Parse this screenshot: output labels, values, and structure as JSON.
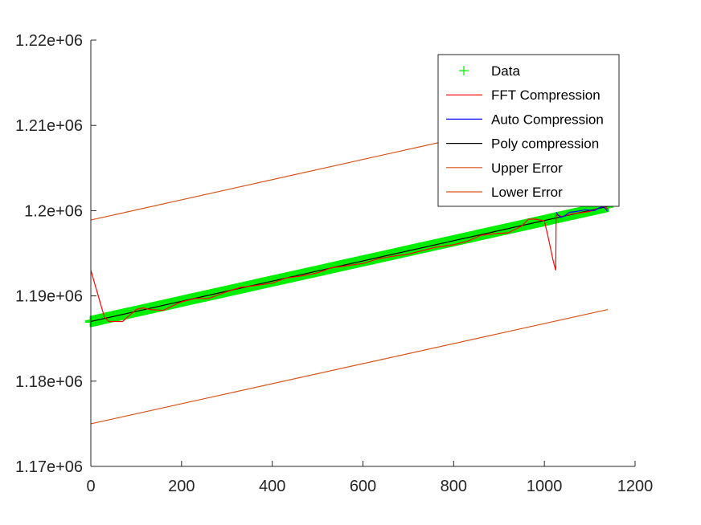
{
  "chart_data": {
    "type": "line",
    "title": "",
    "xlabel": "",
    "ylabel": "",
    "xlim": [
      0,
      1200
    ],
    "ylim": [
      1170000,
      1220000
    ],
    "x_ticks": [
      0,
      200,
      400,
      600,
      800,
      1000,
      1200
    ],
    "x_tick_labels": [
      "0",
      "200",
      "400",
      "600",
      "800",
      "1000",
      "1200"
    ],
    "y_ticks": [
      1170000,
      1180000,
      1190000,
      1200000,
      1210000,
      1220000
    ],
    "y_tick_labels": [
      "1.17e+06",
      "1.18e+06",
      "1.19e+06",
      "1.2e+06",
      "1.21e+06",
      "1.22e+06"
    ],
    "grid": false,
    "legend_position": "top-right",
    "series": [
      {
        "name": "Data",
        "kind": "markers",
        "marker": "+",
        "color": "#00ee00",
        "x_range": [
          0,
          1140
        ],
        "y_start": 1187000,
        "y_end": 1200500
      },
      {
        "name": "FFT Compression",
        "kind": "line",
        "color": "#ff0000",
        "x": [
          0,
          30,
          40,
          60,
          70,
          100,
          115,
          130,
          160,
          175,
          200,
          230,
          260,
          300,
          330,
          360,
          400,
          430,
          460,
          500,
          530,
          560,
          600,
          630,
          660,
          700,
          730,
          760,
          800,
          830,
          860,
          890,
          920,
          950,
          965,
          980,
          1000,
          1010,
          1020,
          1025,
          1026,
          1040,
          1060,
          1100,
          1130,
          1140
        ],
        "y": [
          1193000,
          1187500,
          1187000,
          1187000,
          1187000,
          1188400,
          1188600,
          1188400,
          1188300,
          1188700,
          1189300,
          1189700,
          1189700,
          1190500,
          1191000,
          1191200,
          1191500,
          1192100,
          1192300,
          1192700,
          1193300,
          1193500,
          1193800,
          1194300,
          1194600,
          1194900,
          1195300,
          1195700,
          1196000,
          1196400,
          1197100,
          1197300,
          1197400,
          1198200,
          1199000,
          1199000,
          1198800,
          1196500,
          1194000,
          1193000,
          1199500,
          1199300,
          1199600,
          1199900,
          1200500,
          1200200
        ]
      },
      {
        "name": "Auto Compression",
        "kind": "line",
        "color": "#0000ff",
        "x": [
          1026,
          1035,
          1045,
          1055,
          1070,
          1090,
          1110,
          1120,
          1130,
          1140
        ],
        "y": [
          1199800,
          1199200,
          1199400,
          1199800,
          1199900,
          1200100,
          1200000,
          1200300,
          1200500,
          1199900
        ]
      },
      {
        "name": "Poly compression",
        "kind": "line",
        "color": "#000000",
        "x_range": [
          0,
          1140
        ],
        "y_start": 1187000,
        "y_end": 1200500
      },
      {
        "name": "Upper Error",
        "kind": "line",
        "color": "#d95319",
        "x_range": [
          0,
          1140
        ],
        "y_start": 1198900,
        "y_end": 1212400
      },
      {
        "name": "Lower Error",
        "kind": "line",
        "color": "#d95319",
        "x_range": [
          0,
          1140
        ],
        "y_start": 1175000,
        "y_end": 1188400
      }
    ]
  }
}
